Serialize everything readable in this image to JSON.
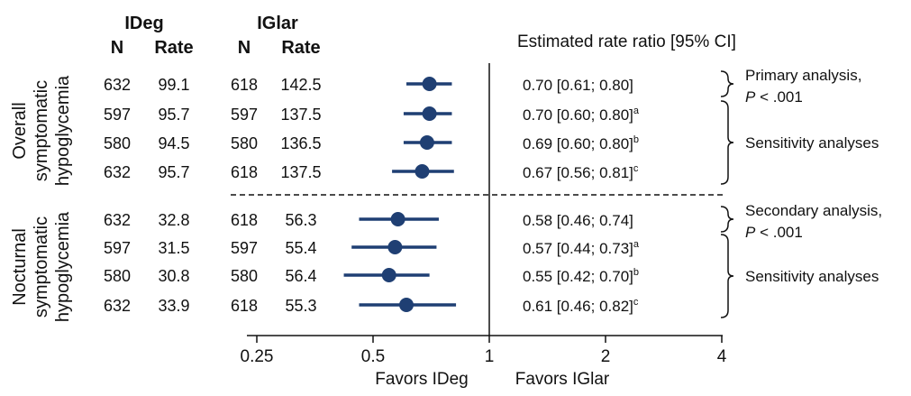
{
  "headers": {
    "ideg": "IDeg",
    "iglar": "IGlar",
    "n": "N",
    "rate": "Rate",
    "ratio_title": "Estimated rate ratio [95% CI]"
  },
  "groups": [
    {
      "label_lines": [
        "Overall",
        "symptomatic",
        "hypoglycemia"
      ]
    },
    {
      "label_lines": [
        "Nocturnal",
        "symptomatic",
        "hypoglycemia"
      ]
    }
  ],
  "rows": [
    {
      "ideg_n": "632",
      "ideg_rate": "99.1",
      "iglar_n": "618",
      "iglar_rate": "142.5",
      "ci_text": "0.70 [0.61; 0.80]",
      "ci_sup": ""
    },
    {
      "ideg_n": "597",
      "ideg_rate": "95.7",
      "iglar_n": "597",
      "iglar_rate": "137.5",
      "ci_text": "0.70 [0.60; 0.80]",
      "ci_sup": "a"
    },
    {
      "ideg_n": "580",
      "ideg_rate": "94.5",
      "iglar_n": "580",
      "iglar_rate": "136.5",
      "ci_text": "0.69 [0.60; 0.80]",
      "ci_sup": "b"
    },
    {
      "ideg_n": "632",
      "ideg_rate": "95.7",
      "iglar_n": "618",
      "iglar_rate": "137.5",
      "ci_text": "0.67 [0.56; 0.81]",
      "ci_sup": "c"
    },
    {
      "ideg_n": "632",
      "ideg_rate": "32.8",
      "iglar_n": "618",
      "iglar_rate": "56.3",
      "ci_text": "0.58 [0.46; 0.74]",
      "ci_sup": ""
    },
    {
      "ideg_n": "597",
      "ideg_rate": "31.5",
      "iglar_n": "597",
      "iglar_rate": "55.4",
      "ci_text": "0.57 [0.44; 0.73]",
      "ci_sup": "a"
    },
    {
      "ideg_n": "580",
      "ideg_rate": "30.8",
      "iglar_n": "580",
      "iglar_rate": "56.4",
      "ci_text": "0.55 [0.42; 0.70]",
      "ci_sup": "b"
    },
    {
      "ideg_n": "632",
      "ideg_rate": "33.9",
      "iglar_n": "618",
      "iglar_rate": "55.3",
      "ci_text": "0.61 [0.46; 0.82]",
      "ci_sup": "c"
    }
  ],
  "annotations": [
    {
      "rows": [
        0,
        0
      ],
      "line1": "Primary analysis,",
      "line2_italic": "P",
      "line2_rest": " < .001"
    },
    {
      "rows": [
        1,
        3
      ],
      "line1": "Sensitivity analyses"
    },
    {
      "rows": [
        4,
        4
      ],
      "line1": "Secondary analysis,",
      "line2_italic": "P",
      "line2_rest": " < .001"
    },
    {
      "rows": [
        5,
        7
      ],
      "line1": "Sensitivity analyses"
    }
  ],
  "axis": {
    "favors_left": "Favors IDeg",
    "favors_right": "Favors IGlar"
  },
  "colors": {
    "marker": "#1f3f73",
    "text": "#111111"
  },
  "chart_data": {
    "type": "forest",
    "scale": "log2",
    "xlim": [
      0.25,
      4
    ],
    "reference_line": 1,
    "ticks": [
      {
        "value": 0.25,
        "label": "0.25"
      },
      {
        "value": 0.5,
        "label": "0.5"
      },
      {
        "value": 1,
        "label": "1"
      },
      {
        "value": 2,
        "label": "2"
      },
      {
        "value": 4,
        "label": "4"
      }
    ],
    "points": [
      {
        "est": 0.7,
        "lo": 0.61,
        "hi": 0.8
      },
      {
        "est": 0.7,
        "lo": 0.6,
        "hi": 0.8
      },
      {
        "est": 0.69,
        "lo": 0.6,
        "hi": 0.8
      },
      {
        "est": 0.67,
        "lo": 0.56,
        "hi": 0.81
      },
      {
        "est": 0.58,
        "lo": 0.46,
        "hi": 0.74
      },
      {
        "est": 0.57,
        "lo": 0.44,
        "hi": 0.73
      },
      {
        "est": 0.55,
        "lo": 0.42,
        "hi": 0.7
      },
      {
        "est": 0.61,
        "lo": 0.46,
        "hi": 0.82
      }
    ]
  }
}
